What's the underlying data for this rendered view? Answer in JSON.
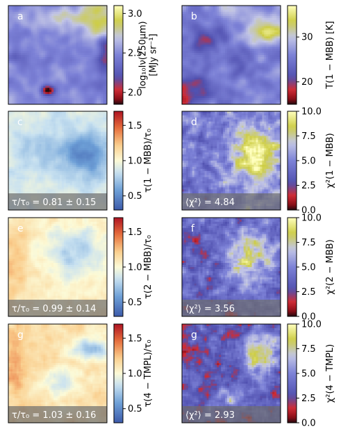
{
  "figure": {
    "panels": [
      {
        "key": "a",
        "letter": "a",
        "letter_color": "#ffffff",
        "map": "intensity",
        "seed": 11,
        "colorbar": {
          "label_lines": [
            "log₁₀Iν(250μm)",
            "[MJy sr⁻¹]"
          ],
          "ticks": [
            "2.0",
            "2.5",
            "3.0"
          ],
          "range": [
            1.85,
            3.1
          ],
          "cmap": "blue-yellow-red",
          "tick_vals": [
            2.0,
            2.5,
            3.0
          ]
        },
        "annotation": ""
      },
      {
        "key": "b",
        "letter": "b",
        "letter_color": "#ffffff",
        "map": "temperature",
        "seed": 23,
        "colorbar": {
          "label_lines": [
            "T(1 − MBB) [K]"
          ],
          "ticks": [
            "20",
            "30"
          ],
          "range": [
            15,
            37
          ],
          "cmap": "blue-yellow-red",
          "tick_vals": [
            20,
            30
          ]
        },
        "annotation": ""
      },
      {
        "key": "c",
        "letter": "c",
        "letter_color": "#ffffff",
        "map": "tau1",
        "seed": 31,
        "colorbar": {
          "label_lines": [
            "τ(1 − MBB)/τ₀"
          ],
          "ticks": [
            "0.5",
            "1.0",
            "1.5"
          ],
          "range": [
            0.3,
            1.7
          ],
          "cmap": "diverging",
          "tick_vals": [
            0.5,
            1.0,
            1.5
          ]
        },
        "annotation": "τ/τ₀ = 0.81 ± 0.15"
      },
      {
        "key": "d",
        "letter": "d",
        "letter_color": "#ffffff",
        "map": "chi1",
        "seed": 41,
        "colorbar": {
          "label_lines": [
            "χ²(1 − MBB)"
          ],
          "ticks": [
            "0.0",
            "2.5",
            "5.0",
            "7.5",
            "10.0"
          ],
          "range": [
            0,
            10
          ],
          "cmap": "blue-yellow-red",
          "tick_vals": [
            0,
            2.5,
            5,
            7.5,
            10
          ]
        },
        "annotation": "⟨χ²⟩ = 4.84"
      },
      {
        "key": "e",
        "letter": "e",
        "letter_color": "#ffffff",
        "map": "tau2",
        "seed": 53,
        "colorbar": {
          "label_lines": [
            "τ(2 − MBB)/τ₀"
          ],
          "ticks": [
            "0.5",
            "1.0",
            "1.5"
          ],
          "range": [
            0.3,
            1.7
          ],
          "cmap": "diverging",
          "tick_vals": [
            0.5,
            1.0,
            1.5
          ]
        },
        "annotation": "τ/τ₀ = 0.99 ± 0.14"
      },
      {
        "key": "f",
        "letter": "f",
        "letter_color": "#ffffff",
        "map": "chi2",
        "seed": 61,
        "colorbar": {
          "label_lines": [
            "χ²(2 − MBB)"
          ],
          "ticks": [
            "0.0",
            "2.5",
            "5.0",
            "7.5",
            "10.0"
          ],
          "range": [
            0,
            10
          ],
          "cmap": "blue-yellow-red",
          "tick_vals": [
            0,
            2.5,
            5,
            7.5,
            10
          ]
        },
        "annotation": "⟨χ²⟩ = 3.56"
      },
      {
        "key": "g1",
        "letter": "g",
        "letter_color": "#ffffff",
        "map": "tau4",
        "seed": 71,
        "colorbar": {
          "label_lines": [
            "τ(4 − TMPL)/τ₀"
          ],
          "ticks": [
            "0.5",
            "1.0",
            "1.5"
          ],
          "range": [
            0.3,
            1.7
          ],
          "cmap": "diverging",
          "tick_vals": [
            0.5,
            1.0,
            1.5
          ]
        },
        "annotation": "τ/τ₀ = 1.03 ± 0.16"
      },
      {
        "key": "g2",
        "letter": "g",
        "letter_color": "#ffffff",
        "map": "chi4",
        "seed": 83,
        "colorbar": {
          "label_lines": [
            "χ²(4 − TMPL)"
          ],
          "ticks": [
            "0.0",
            "2.5",
            "5.0",
            "7.5",
            "10.0"
          ],
          "range": [
            0,
            10
          ],
          "cmap": "blue-yellow-red",
          "tick_vals": [
            0,
            2.5,
            5,
            7.5,
            10
          ]
        },
        "annotation": "⟨χ²⟩ = 2.93"
      }
    ]
  },
  "chart_data": {
    "type": "heatmap",
    "panels": [
      {
        "panel": "a",
        "quantity": "log10 Iν(250μm) [MJy sr⁻¹]",
        "colorbar_range": [
          1.85,
          3.1
        ]
      },
      {
        "panel": "b",
        "quantity": "T(1 − MBB) [K]",
        "colorbar_range": [
          15,
          37
        ]
      },
      {
        "panel": "c",
        "quantity": "τ(1 − MBB)/τ₀",
        "colorbar_range": [
          0.3,
          1.7
        ],
        "annotation": "τ/τ₀ = 0.81 ± 0.15"
      },
      {
        "panel": "d",
        "quantity": "χ²(1 − MBB)",
        "colorbar_range": [
          0,
          10
        ],
        "annotation": "⟨χ²⟩ = 4.84"
      },
      {
        "panel": "e",
        "quantity": "τ(2 − MBB)/τ₀",
        "colorbar_range": [
          0.3,
          1.7
        ],
        "annotation": "τ/τ₀ = 0.99 ± 0.14"
      },
      {
        "panel": "f",
        "quantity": "χ²(2 − MBB)",
        "colorbar_range": [
          0,
          10
        ],
        "annotation": "⟨χ²⟩ = 3.56"
      },
      {
        "panel": "g",
        "quantity": "τ(4 − TMPL)/τ₀",
        "colorbar_range": [
          0.3,
          1.7
        ],
        "annotation": "τ/τ₀ = 1.03 ± 0.16"
      },
      {
        "panel": "g",
        "quantity": "χ²(4 − TMPL)",
        "colorbar_range": [
          0,
          10
        ],
        "annotation": "⟨χ²⟩ = 2.93"
      }
    ]
  }
}
